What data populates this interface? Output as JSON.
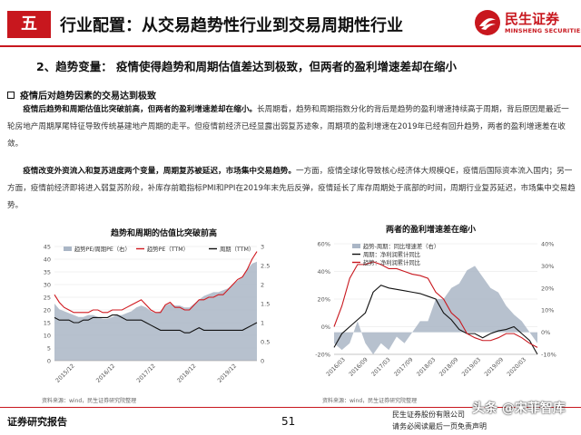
{
  "header": {
    "section_number": "五",
    "title": "行业配置：从交易趋势性行业到交易周期性行业",
    "logo_cn": "民生证券",
    "logo_en": "MINSHENG SECURITIES",
    "brand_color": "#c8171e"
  },
  "subheading": "2、趋势变量：  疫情使得趋势和周期估值差达到极致，但两者的盈利增速差却在缩小",
  "bullet": {
    "icon": "square-bullet-icon",
    "title": "疫情后对趋势因素的交易达到极致"
  },
  "paragraph1": {
    "bold": "疫情后趋势和周期估值比突破前高，但两者的盈利增速差却在缩小。",
    "text": "长周期看，趋势和周期指数分化的背后是趋势的盈利增速持续高于周期，背后原因是最近一轮房地产周期厚尾特征导致传统基建地产周期的走平。但疫情前经济已经显露出弱复苏迹象，周期项的盈利增速在2019年已经有回升趋势，两者的盈利增速差在收敛。"
  },
  "paragraph2": {
    "bold": "疫情改变外资流入和复苏进度两个变量，周期复苏被延迟，市场集中交易趋势。",
    "text": "一方面，疫情全球化导致核心经济体大规模QE，疫情后国际资本流入国内；另一方面，疫情前经济即将进入弱复苏阶段，补库存前瞻指标PMI和PPI在2019年末先后反弹，疫情延长了库存周期处于底部的时间，周期行业复苏延迟，市场集中交易趋势。"
  },
  "chart_left_title": "趋势和周期的估值比突破前高",
  "chart_right_title": "两者的盈利增速差在缩小",
  "chart_data": [
    {
      "type": "area",
      "title": "趋势和周期的估值比突破前高",
      "series": [
        {
          "name": "趋势PE/周期PE（右）",
          "color": "#aab6c6",
          "axis": "right",
          "values": [
            1.5,
            1.35,
            1.3,
            1.25,
            1.2,
            1.15,
            1.15,
            1.2,
            1.2,
            1.15,
            1.1,
            1.1,
            1.15,
            1.2,
            1.2,
            1.25,
            1.3,
            1.4,
            1.45,
            1.4,
            1.3,
            1.25,
            1.3,
            1.45,
            1.5,
            1.45,
            1.45,
            1.4,
            1.4,
            1.5,
            1.6,
            1.7,
            1.75,
            1.8,
            1.8,
            1.85,
            1.9,
            2.0,
            2.1,
            2.2,
            2.4,
            2.55,
            2.6
          ]
        },
        {
          "name": "趋势PE（TTM）",
          "color": "#d0191f",
          "axis": "left",
          "values": [
            26,
            23,
            21,
            20,
            19,
            19,
            19,
            19,
            20,
            20,
            19,
            19,
            20,
            20,
            20,
            21,
            22,
            23,
            24,
            22,
            20,
            19,
            19,
            22,
            23,
            21,
            21,
            20,
            20,
            22,
            24,
            24,
            25,
            25,
            26,
            26,
            28,
            30,
            32,
            33,
            36,
            40,
            43
          ]
        },
        {
          "name": "周期（TTM）",
          "color": "#111111",
          "axis": "left",
          "values": [
            17,
            16,
            16,
            16,
            15,
            15,
            16,
            16,
            17,
            17,
            17,
            17,
            18,
            18,
            17,
            16,
            16,
            16,
            16,
            15,
            14,
            13,
            12,
            12,
            12,
            12,
            12,
            11,
            11,
            12,
            13,
            12,
            12,
            12,
            12,
            12,
            12,
            12,
            12,
            12,
            13,
            14,
            15
          ]
        }
      ],
      "x_ticks": [
        "2015/12",
        "2016/12",
        "2017/12",
        "2018/12",
        "2019/12"
      ],
      "y_left_ticks": [
        "0",
        "5",
        "10",
        "15",
        "20",
        "25",
        "30",
        "35",
        "40",
        "45"
      ],
      "y_right_ticks": [
        "0",
        "0.5",
        "1",
        "1.5",
        "2",
        "2.5",
        "3"
      ],
      "ylim_left": [
        0,
        45
      ],
      "ylim_right": [
        0,
        3
      ],
      "legend": "top"
    },
    {
      "type": "area",
      "title": "两者的盈利增速差在缩小",
      "series": [
        {
          "name": "趋势-周期：同比增速差（右）",
          "color": "#aab6c6",
          "axis": "right",
          "values": [
            -5,
            -8,
            -5,
            5,
            -5,
            -10,
            -5,
            -8,
            -2,
            -5,
            0,
            5,
            5,
            15,
            15,
            20,
            22,
            28,
            30,
            25,
            20,
            18,
            12,
            8,
            5,
            0,
            -5
          ]
        },
        {
          "name": "周期：净利润累计同比",
          "color": "#111111",
          "axis": "left",
          "values": [
            -15,
            -5,
            0,
            5,
            10,
            25,
            30,
            28,
            27,
            26,
            25,
            24,
            22,
            20,
            10,
            5,
            -2,
            -5,
            -5,
            -8,
            -5,
            -3,
            -2,
            0,
            -5,
            -10,
            -20
          ]
        },
        {
          "name": "趋势：净利润累计同比",
          "color": "#c8171e",
          "axis": "left",
          "values": [
            0,
            15,
            35,
            45,
            45,
            47,
            45,
            42,
            42,
            40,
            38,
            37,
            35,
            25,
            20,
            10,
            5,
            -5,
            -8,
            -10,
            -10,
            -8,
            -5,
            -5,
            -8,
            -12,
            -15
          ]
        }
      ],
      "x_ticks": [
        "2016/03",
        "2016/09",
        "2017/03",
        "2017/09",
        "2018/03",
        "2018/09",
        "2019/03",
        "2019/09",
        "2020/03"
      ],
      "y_left_ticks": [
        "-20%",
        "0%",
        "20%",
        "40%",
        "60%"
      ],
      "y_right_ticks": [
        "-10%",
        "0%",
        "10%",
        "20%",
        "30%",
        "40%"
      ],
      "ylim_left": [
        -20,
        60
      ],
      "ylim_right": [
        -10,
        40
      ],
      "legend": "top-left"
    }
  ],
  "sources": {
    "left": "资料来源：wind，民生证券研究院整理",
    "right": "资料来源：wind，民生证券研究院整理"
  },
  "footer": {
    "left": "证券研究报告",
    "page": "51",
    "right_line1": "民生证券股份有限公司",
    "right_line2": "请务必阅读最后一页免责声明",
    "watermark": "头条 @宋菲智库"
  }
}
